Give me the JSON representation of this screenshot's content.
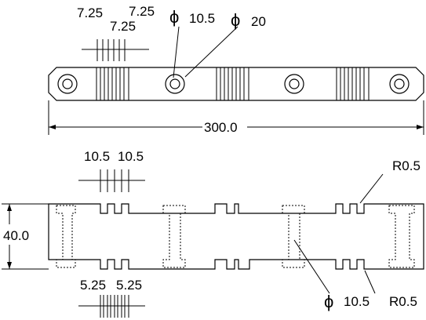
{
  "top_view": {
    "dims": {
      "ridge_a": "7.25",
      "ridge_b": "7.25",
      "ridge_c": "7.25",
      "hole_diameter": "10.5",
      "boss_diameter": "20",
      "length": "300.0"
    },
    "diameter_symbol": "ϕ"
  },
  "bottom_view": {
    "dims": {
      "slot_a": "10.5",
      "slot_b": "10.5",
      "width": "40.0",
      "step_a": "5.25",
      "step_b": "5.25",
      "fillet_top": "R0.5",
      "fillet_bottom": "R0.5",
      "hidden_diameter": "10.5"
    },
    "diameter_symbol": "ϕ"
  }
}
